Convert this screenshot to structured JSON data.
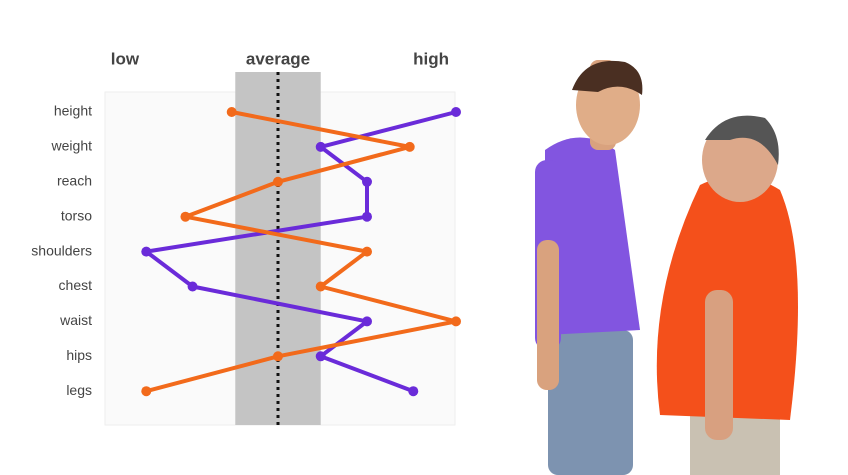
{
  "chart_data": {
    "type": "profile-line",
    "categories": [
      "height",
      "weight",
      "reach",
      "torso",
      "shoulders",
      "chest",
      "waist",
      "hips",
      "legs"
    ],
    "series": [
      {
        "color": "#6a2bd9",
        "values": [
          100,
          62,
          75,
          75,
          13,
          26,
          75,
          62,
          88
        ]
      },
      {
        "color": "#f26a1b",
        "values": [
          37,
          87,
          50,
          24,
          75,
          62,
          100,
          50,
          13
        ]
      }
    ],
    "xlim": [
      0,
      100
    ],
    "xticks": [
      {
        "value": 7,
        "label": "low"
      },
      {
        "value": 50,
        "label": "average"
      },
      {
        "value": 93,
        "label": "high"
      }
    ],
    "average_band": [
      38,
      62
    ],
    "band_color": "#c4c4c4"
  }
}
